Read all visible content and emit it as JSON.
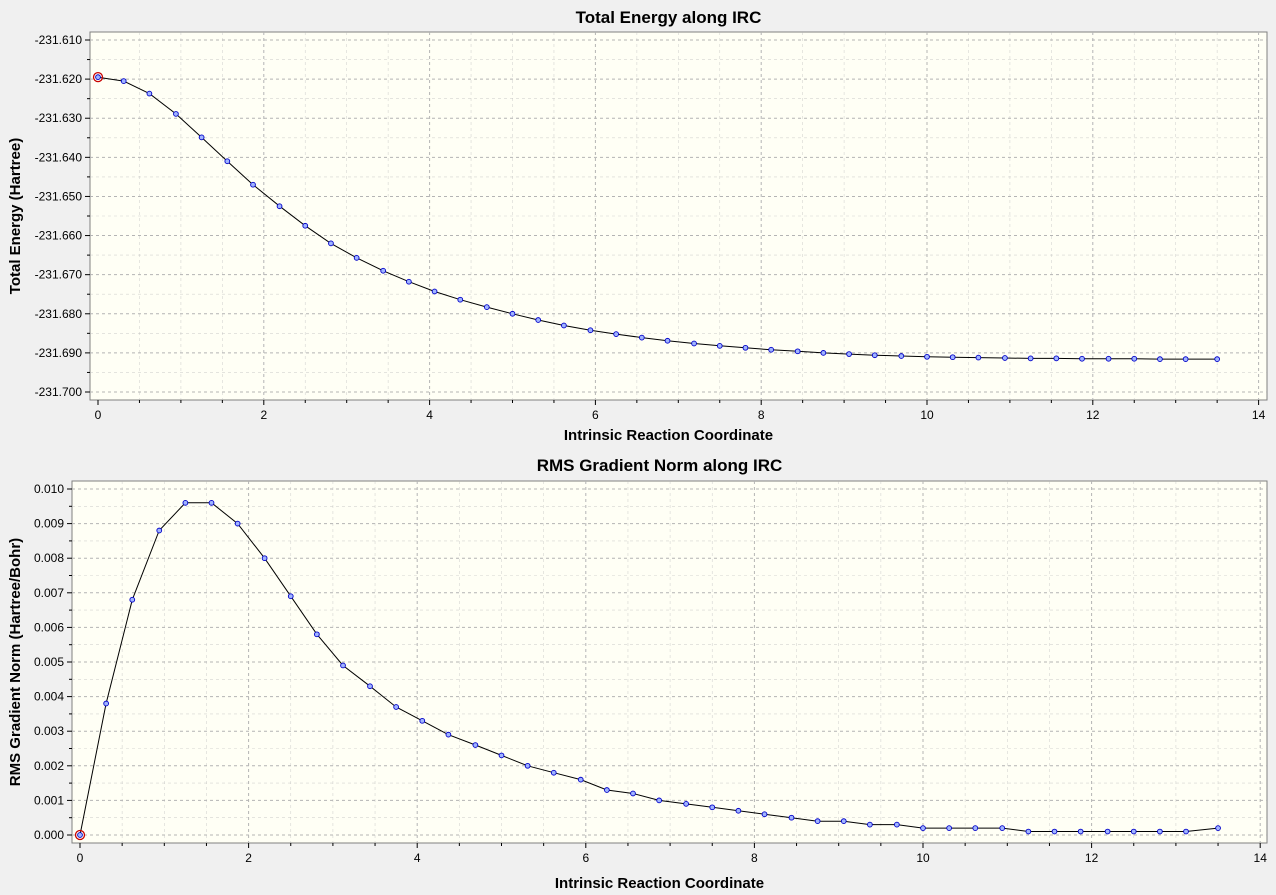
{
  "colors": {
    "window_bg": "#f0f0f0",
    "plot_bg": "#fffff5",
    "grid": "#b4b4b4",
    "line": "#000000",
    "marker_fill": "#a0b4ff",
    "marker_stroke": "#0000c8",
    "highlight": "#c80000"
  },
  "chart_data": [
    {
      "type": "line",
      "title": "Total Energy along IRC",
      "xlabel": "Intrinsic Reaction Coordinate",
      "ylabel": "Total Energy (Hartree)",
      "xlim": [
        0,
        14
      ],
      "ylim": [
        -231.7,
        -231.61
      ],
      "xticks": [
        "0",
        "2",
        "4",
        "6",
        "8",
        "10",
        "12",
        "14"
      ],
      "yticks": [
        "-231.610",
        "-231.620",
        "-231.630",
        "-231.640",
        "-231.650",
        "-231.660",
        "-231.670",
        "-231.680",
        "-231.690",
        "-231.700"
      ],
      "grid": true,
      "highlighted_point_index": 0,
      "series": [
        {
          "x": [
            0,
            0.31,
            0.62,
            0.94,
            1.25,
            1.56,
            1.87,
            2.19,
            2.5,
            2.81,
            3.12,
            3.44,
            3.75,
            4.06,
            4.37,
            4.69,
            5.0,
            5.31,
            5.62,
            5.94,
            6.25,
            6.56,
            6.87,
            7.19,
            7.5,
            7.81,
            8.12,
            8.44,
            8.75,
            9.06,
            9.37,
            9.69,
            10.0,
            10.31,
            10.62,
            10.94,
            11.25,
            11.56,
            11.87,
            12.19,
            12.5,
            12.81,
            13.12,
            13.5
          ],
          "values": [
            -231.6195,
            -231.6205,
            -231.6237,
            -231.6289,
            -231.6349,
            -231.641,
            -231.647,
            -231.6525,
            -231.6575,
            -231.662,
            -231.6657,
            -231.669,
            -231.6718,
            -231.6743,
            -231.6764,
            -231.6783,
            -231.68,
            -231.6816,
            -231.683,
            -231.6842,
            -231.6852,
            -231.6861,
            -231.6869,
            -231.6876,
            -231.6882,
            -231.6887,
            -231.6892,
            -231.6896,
            -231.69,
            -231.6903,
            -231.6906,
            -231.6908,
            -231.691,
            -231.6911,
            -231.6912,
            -231.6913,
            -231.6914,
            -231.6914,
            -231.6915,
            -231.6915,
            -231.6915,
            -231.6916,
            -231.6916,
            -231.6916
          ]
        }
      ]
    },
    {
      "type": "line",
      "title": "RMS Gradient Norm along IRC",
      "xlabel": "Intrinsic Reaction Coordinate",
      "ylabel": "RMS Gradient Norm (Hartree/Bohr)",
      "xlim": [
        0,
        14
      ],
      "ylim": [
        0.0,
        0.01
      ],
      "xticks": [
        "0",
        "2",
        "4",
        "6",
        "8",
        "10",
        "12",
        "14"
      ],
      "yticks": [
        "0.010",
        "0.009",
        "0.008",
        "0.007",
        "0.006",
        "0.005",
        "0.004",
        "0.003",
        "0.002",
        "0.001",
        "0.000"
      ],
      "grid": true,
      "highlighted_point_index": 0,
      "series": [
        {
          "x": [
            0,
            0.31,
            0.62,
            0.94,
            1.25,
            1.56,
            1.87,
            2.19,
            2.5,
            2.81,
            3.12,
            3.44,
            3.75,
            4.06,
            4.37,
            4.69,
            5.0,
            5.31,
            5.62,
            5.94,
            6.25,
            6.56,
            6.87,
            7.19,
            7.5,
            7.81,
            8.12,
            8.44,
            8.75,
            9.06,
            9.37,
            9.69,
            10.0,
            10.31,
            10.62,
            10.94,
            11.25,
            11.56,
            11.87,
            12.19,
            12.5,
            12.81,
            13.12,
            13.5
          ],
          "values": [
            0.0,
            0.0038,
            0.0068,
            0.0088,
            0.0096,
            0.0096,
            0.009,
            0.008,
            0.0069,
            0.0058,
            0.0049,
            0.0043,
            0.0037,
            0.0033,
            0.0029,
            0.0026,
            0.0023,
            0.002,
            0.0018,
            0.0016,
            0.0013,
            0.0012,
            0.001,
            0.0009,
            0.0008,
            0.0007,
            0.0006,
            0.0005,
            0.0004,
            0.0004,
            0.0003,
            0.0003,
            0.0002,
            0.0002,
            0.0002,
            0.0002,
            0.0001,
            0.0001,
            0.0001,
            0.0001,
            0.0001,
            0.0001,
            0.0001,
            0.0002
          ]
        }
      ]
    }
  ]
}
